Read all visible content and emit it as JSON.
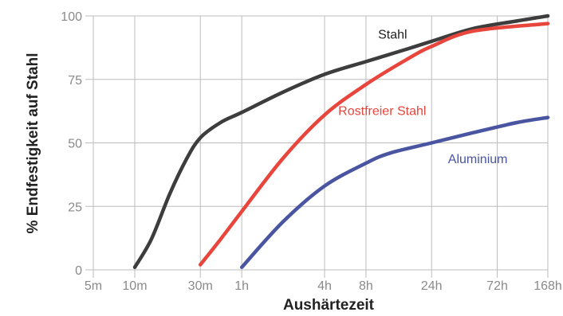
{
  "chart_data": {
    "type": "line",
    "title": "",
    "xlabel": "Aushärtezeit",
    "ylabel": "% Endfestigkeit auf Stahl",
    "x_scale": "log",
    "x_unit": "hours",
    "x_ticks": [
      {
        "label": "5m",
        "hours": 0.0833
      },
      {
        "label": "10m",
        "hours": 0.1667
      },
      {
        "label": "30m",
        "hours": 0.5
      },
      {
        "label": "1h",
        "hours": 1
      },
      {
        "label": "4h",
        "hours": 4
      },
      {
        "label": "8h",
        "hours": 8
      },
      {
        "label": "24h",
        "hours": 24
      },
      {
        "label": "72h",
        "hours": 72
      },
      {
        "label": "168h",
        "hours": 168
      }
    ],
    "y_ticks": [
      0,
      25,
      50,
      75,
      100
    ],
    "ylim": [
      0,
      100
    ],
    "xlim_hours": [
      0.0833,
      168
    ],
    "grid": true,
    "legend": "inline labels next to lines",
    "series": [
      {
        "name": "Stahl",
        "color": "#3d3d3d",
        "points": [
          [
            0.1667,
            1
          ],
          [
            0.22,
            12
          ],
          [
            0.3,
            30
          ],
          [
            0.4,
            44
          ],
          [
            0.5,
            52
          ],
          [
            0.7,
            58
          ],
          [
            1,
            62
          ],
          [
            2,
            70
          ],
          [
            4,
            77
          ],
          [
            8,
            82
          ],
          [
            16,
            87
          ],
          [
            24,
            90
          ],
          [
            48,
            95
          ],
          [
            100,
            98
          ],
          [
            168,
            100
          ]
        ]
      },
      {
        "name": "Rostfreier Stahl",
        "color": "#e8453c",
        "points": [
          [
            0.5,
            2
          ],
          [
            0.7,
            12
          ],
          [
            1,
            23
          ],
          [
            2,
            44
          ],
          [
            4,
            61
          ],
          [
            8,
            73
          ],
          [
            16,
            83
          ],
          [
            24,
            88
          ],
          [
            48,
            94
          ],
          [
            168,
            97
          ]
        ]
      },
      {
        "name": "Aluminium",
        "color": "#4a55a2",
        "points": [
          [
            1,
            1
          ],
          [
            2,
            19
          ],
          [
            4,
            33
          ],
          [
            8,
            42
          ],
          [
            12,
            46
          ],
          [
            24,
            50
          ],
          [
            48,
            54
          ],
          [
            100,
            58
          ],
          [
            168,
            60
          ]
        ]
      }
    ]
  }
}
